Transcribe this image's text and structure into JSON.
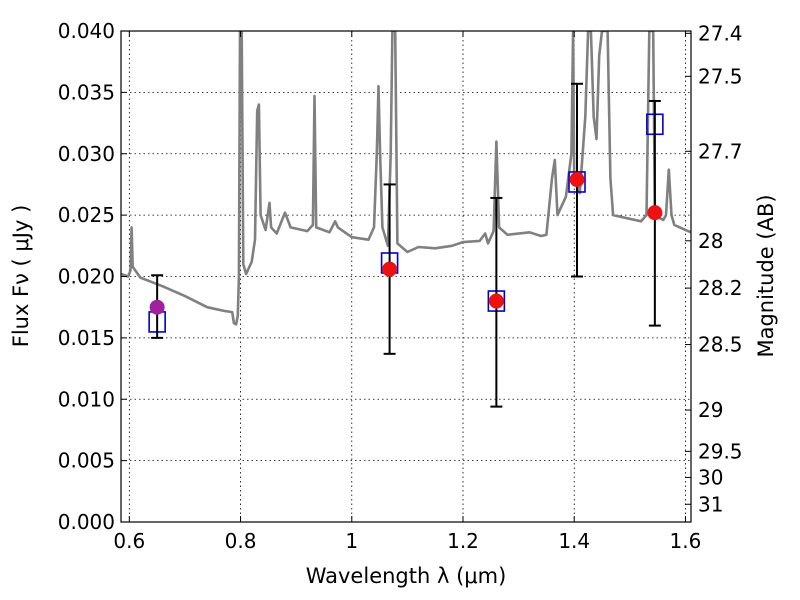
{
  "chart_data": {
    "type": "scatter",
    "xlabel": "Wavelength  λ (μm)",
    "ylabel": "Flux  Fν  ( μJy )",
    "y2label": "Magnitude (AB)",
    "xlim": [
      0.585,
      1.61
    ],
    "ylim": [
      0.0,
      0.04
    ],
    "grid": true,
    "xticks": [
      {
        "v": 0.6,
        "label": "0.6"
      },
      {
        "v": 0.8,
        "label": "0.8"
      },
      {
        "v": 1.0,
        "label": "1"
      },
      {
        "v": 1.2,
        "label": "1.2"
      },
      {
        "v": 1.4,
        "label": "1.4"
      },
      {
        "v": 1.6,
        "label": "1.6"
      }
    ],
    "yticks": [
      {
        "v": 0.0,
        "label": "0.000"
      },
      {
        "v": 0.005,
        "label": "0.005"
      },
      {
        "v": 0.01,
        "label": "0.010"
      },
      {
        "v": 0.015,
        "label": "0.015"
      },
      {
        "v": 0.02,
        "label": "0.020"
      },
      {
        "v": 0.025,
        "label": "0.025"
      },
      {
        "v": 0.03,
        "label": "0.030"
      },
      {
        "v": 0.035,
        "label": "0.035"
      },
      {
        "v": 0.04,
        "label": "0.040"
      }
    ],
    "y2ticks": [
      {
        "mag": 27.4,
        "label": "27.4"
      },
      {
        "mag": 27.5,
        "label": "27.5"
      },
      {
        "mag": 27.7,
        "label": "27.7"
      },
      {
        "mag": 28.0,
        "label": "28"
      },
      {
        "mag": 28.2,
        "label": "28.2"
      },
      {
        "mag": 28.5,
        "label": "28.5"
      },
      {
        "mag": 29.0,
        "label": "29"
      },
      {
        "mag": 29.5,
        "label": "29.5"
      },
      {
        "mag": 30.0,
        "label": "30"
      },
      {
        "mag": 31.0,
        "label": "31"
      }
    ],
    "series": [
      {
        "kind": "line",
        "color": "#808080",
        "points": [
          [
            0.585,
            0.0202
          ],
          [
            0.598,
            0.02
          ],
          [
            0.602,
            0.0205
          ],
          [
            0.604,
            0.024
          ],
          [
            0.606,
            0.0208
          ],
          [
            0.62,
            0.0199
          ],
          [
            0.66,
            0.0192
          ],
          [
            0.7,
            0.0184
          ],
          [
            0.74,
            0.0175
          ],
          [
            0.77,
            0.0172
          ],
          [
            0.785,
            0.0171
          ],
          [
            0.788,
            0.0162
          ],
          [
            0.792,
            0.0161
          ],
          [
            0.795,
            0.0168
          ],
          [
            0.797,
            0.02
          ],
          [
            0.799,
            0.04
          ],
          [
            0.802,
            0.04
          ],
          [
            0.805,
            0.021
          ],
          [
            0.81,
            0.0202
          ],
          [
            0.82,
            0.0212
          ],
          [
            0.826,
            0.023
          ],
          [
            0.83,
            0.0335
          ],
          [
            0.833,
            0.034
          ],
          [
            0.836,
            0.025
          ],
          [
            0.845,
            0.0238
          ],
          [
            0.852,
            0.026
          ],
          [
            0.855,
            0.024
          ],
          [
            0.865,
            0.0235
          ],
          [
            0.88,
            0.0252
          ],
          [
            0.89,
            0.024
          ],
          [
            0.92,
            0.0237
          ],
          [
            0.93,
            0.0242
          ],
          [
            0.933,
            0.0347
          ],
          [
            0.936,
            0.024
          ],
          [
            0.96,
            0.0236
          ],
          [
            0.97,
            0.0245
          ],
          [
            0.975,
            0.024
          ],
          [
            1.0,
            0.0232
          ],
          [
            1.03,
            0.023
          ],
          [
            1.04,
            0.024
          ],
          [
            1.045,
            0.03
          ],
          [
            1.048,
            0.0355
          ],
          [
            1.051,
            0.03
          ],
          [
            1.055,
            0.024
          ],
          [
            1.065,
            0.0225
          ],
          [
            1.07,
            0.03
          ],
          [
            1.073,
            0.04
          ],
          [
            1.078,
            0.04
          ],
          [
            1.082,
            0.0227
          ],
          [
            1.1,
            0.022
          ],
          [
            1.12,
            0.0224
          ],
          [
            1.15,
            0.0223
          ],
          [
            1.18,
            0.0225
          ],
          [
            1.2,
            0.0228
          ],
          [
            1.23,
            0.0229
          ],
          [
            1.24,
            0.0235
          ],
          [
            1.245,
            0.0227
          ],
          [
            1.255,
            0.0237
          ],
          [
            1.26,
            0.031
          ],
          [
            1.265,
            0.024
          ],
          [
            1.28,
            0.0234
          ],
          [
            1.32,
            0.0236
          ],
          [
            1.34,
            0.0233
          ],
          [
            1.35,
            0.0234
          ],
          [
            1.36,
            0.028
          ],
          [
            1.365,
            0.0295
          ],
          [
            1.37,
            0.025
          ],
          [
            1.385,
            0.0265
          ],
          [
            1.395,
            0.03
          ],
          [
            1.398,
            0.04
          ],
          [
            1.4,
            0.028
          ],
          [
            1.41,
            0.0268
          ],
          [
            1.42,
            0.033
          ],
          [
            1.425,
            0.04
          ],
          [
            1.43,
            0.04
          ],
          [
            1.435,
            0.033
          ],
          [
            1.44,
            0.0312
          ],
          [
            1.445,
            0.038
          ],
          [
            1.45,
            0.04
          ],
          [
            1.46,
            0.04
          ],
          [
            1.465,
            0.028
          ],
          [
            1.47,
            0.025
          ],
          [
            1.5,
            0.0247
          ],
          [
            1.52,
            0.0245
          ],
          [
            1.53,
            0.025
          ],
          [
            1.535,
            0.04
          ],
          [
            1.542,
            0.04
          ],
          [
            1.545,
            0.025
          ],
          [
            1.56,
            0.0246
          ],
          [
            1.565,
            0.025
          ],
          [
            1.57,
            0.0287
          ],
          [
            1.575,
            0.025
          ],
          [
            1.58,
            0.0242
          ],
          [
            1.6,
            0.0238
          ],
          [
            1.61,
            0.0236
          ]
        ]
      },
      {
        "kind": "model-boxes",
        "color": "#0000cc",
        "points": [
          [
            0.65,
            0.0163
          ],
          [
            1.068,
            0.0211
          ],
          [
            1.26,
            0.018
          ],
          [
            1.405,
            0.0277
          ],
          [
            1.545,
            0.0324
          ]
        ]
      },
      {
        "kind": "observed",
        "points": [
          {
            "x": 0.65,
            "y": 0.0175,
            "lo": 0.015,
            "hi": 0.0201,
            "color": "#a020a0"
          },
          {
            "x": 1.068,
            "y": 0.0206,
            "lo": 0.0137,
            "hi": 0.0275,
            "color": "#ee1111"
          },
          {
            "x": 1.26,
            "y": 0.018,
            "lo": 0.0094,
            "hi": 0.0264,
            "color": "#ee1111"
          },
          {
            "x": 1.405,
            "y": 0.0279,
            "lo": 0.02,
            "hi": 0.0357,
            "color": "#ee1111"
          },
          {
            "x": 1.545,
            "y": 0.0252,
            "lo": 0.016,
            "hi": 0.0343,
            "color": "#ee1111"
          }
        ]
      }
    ]
  }
}
